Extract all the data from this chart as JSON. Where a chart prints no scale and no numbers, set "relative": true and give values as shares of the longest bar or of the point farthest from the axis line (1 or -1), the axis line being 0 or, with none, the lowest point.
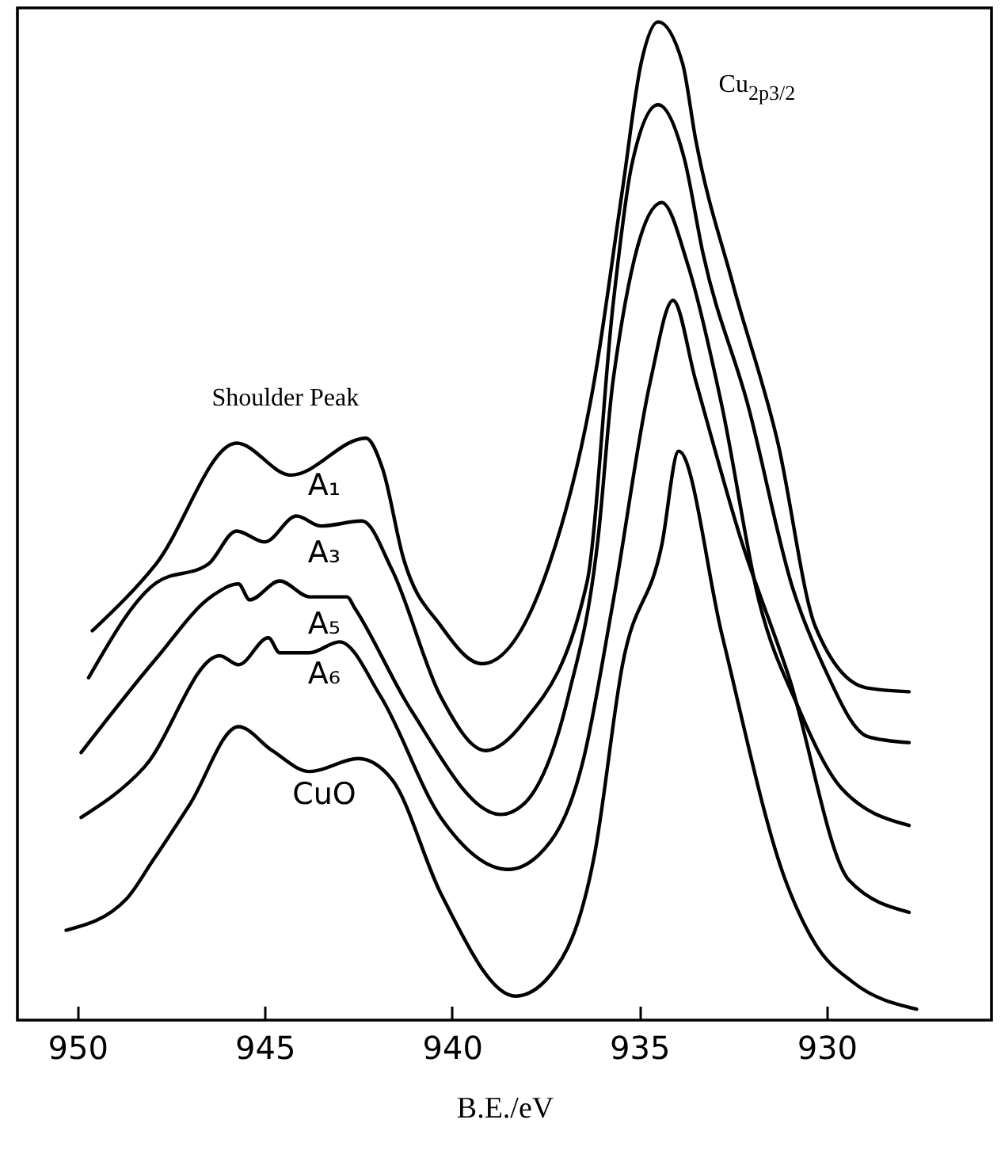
{
  "chart_data": {
    "type": "line",
    "relative": true,
    "xlabel": "B.E./eV",
    "xlim": [
      951.6,
      925.6
    ],
    "xticks": [
      950,
      945,
      940,
      935,
      930
    ],
    "marker": "none",
    "line_style": "solid",
    "annotations": [
      "Shoulder Peak",
      "Cu$_{2p3/2}$"
    ],
    "series": [
      {
        "name": "A₁",
        "color": "#000000",
        "x": [
          949.6,
          947.9,
          945.75,
          944.3,
          942.3,
          941.85,
          941.3,
          940.3,
          939.2,
          937.4,
          936.2,
          935.45,
          934.95,
          934.5,
          933.85,
          933.5,
          932.5,
          931.3,
          930.3,
          928.95,
          927.8
        ],
        "values": [
          0.39,
          0.457,
          0.578,
          0.546,
          0.583,
          0.552,
          0.463,
          0.395,
          0.357,
          0.457,
          0.641,
          0.832,
          0.959,
          1.0,
          0.959,
          0.883,
          0.737,
          0.578,
          0.394,
          0.333,
          0.329
        ]
      },
      {
        "name": "A₃",
        "color": "#000000",
        "x": [
          949.7,
          947.9,
          946.5,
          945.75,
          945.0,
          944.15,
          943.5,
          942.4,
          941.6,
          940.3,
          939.1,
          938.1,
          936.4,
          935.7,
          935.2,
          934.5,
          933.8,
          933.3,
          932.1,
          930.9,
          930.1,
          928.9,
          927.8
        ],
        "values": [
          0.343,
          0.438,
          0.457,
          0.49,
          0.479,
          0.505,
          0.495,
          0.5,
          0.451,
          0.324,
          0.27,
          0.298,
          0.438,
          0.717,
          0.857,
          0.917,
          0.863,
          0.768,
          0.616,
          0.432,
          0.356,
          0.284,
          0.278
        ]
      },
      {
        "name": "A₅",
        "color": "#000000",
        "x": [
          949.9,
          947.9,
          946.4,
          945.7,
          945.4,
          944.6,
          943.8,
          942.8,
          942.6,
          941.1,
          938.7,
          938.1,
          936.9,
          936.1,
          935.7,
          934.4,
          933.7,
          932.8,
          931.8,
          930.8,
          929.6,
          927.8
        ],
        "values": [
          0.268,
          0.362,
          0.425,
          0.437,
          0.421,
          0.44,
          0.424,
          0.424,
          0.413,
          0.311,
          0.206,
          0.216,
          0.324,
          0.483,
          0.641,
          0.819,
          0.756,
          0.616,
          0.419,
          0.317,
          0.232,
          0.195
        ]
      },
      {
        "name": "A₆",
        "color": "#000000",
        "x": [
          949.9,
          948.2,
          946.2,
          945.7,
          944.9,
          944.6,
          943.8,
          943.0,
          941.9,
          940.3,
          938.5,
          937.7,
          936.5,
          935.7,
          934.7,
          934.1,
          933.5,
          932.3,
          931.0,
          929.4,
          927.8
        ],
        "values": [
          0.203,
          0.254,
          0.365,
          0.356,
          0.383,
          0.368,
          0.368,
          0.379,
          0.324,
          0.203,
          0.151,
          0.165,
          0.26,
          0.419,
          0.641,
          0.721,
          0.641,
          0.483,
          0.343,
          0.14,
          0.108
        ]
      },
      {
        "name": "CuO",
        "color": "#000000",
        "x": [
          950.3,
          948.7,
          948.0,
          947.0,
          945.7,
          944.8,
          943.8,
          942.5,
          941.6,
          940.3,
          938.3,
          937.4,
          936.2,
          935.45,
          934.4,
          933.95,
          932.8,
          931.1,
          930.3,
          929.3,
          927.6
        ],
        "values": [
          0.09,
          0.121,
          0.159,
          0.216,
          0.294,
          0.27,
          0.249,
          0.262,
          0.241,
          0.127,
          0.024,
          0.044,
          0.165,
          0.356,
          0.476,
          0.57,
          0.387,
          0.14,
          0.076,
          0.038,
          0.011
        ]
      }
    ]
  }
}
